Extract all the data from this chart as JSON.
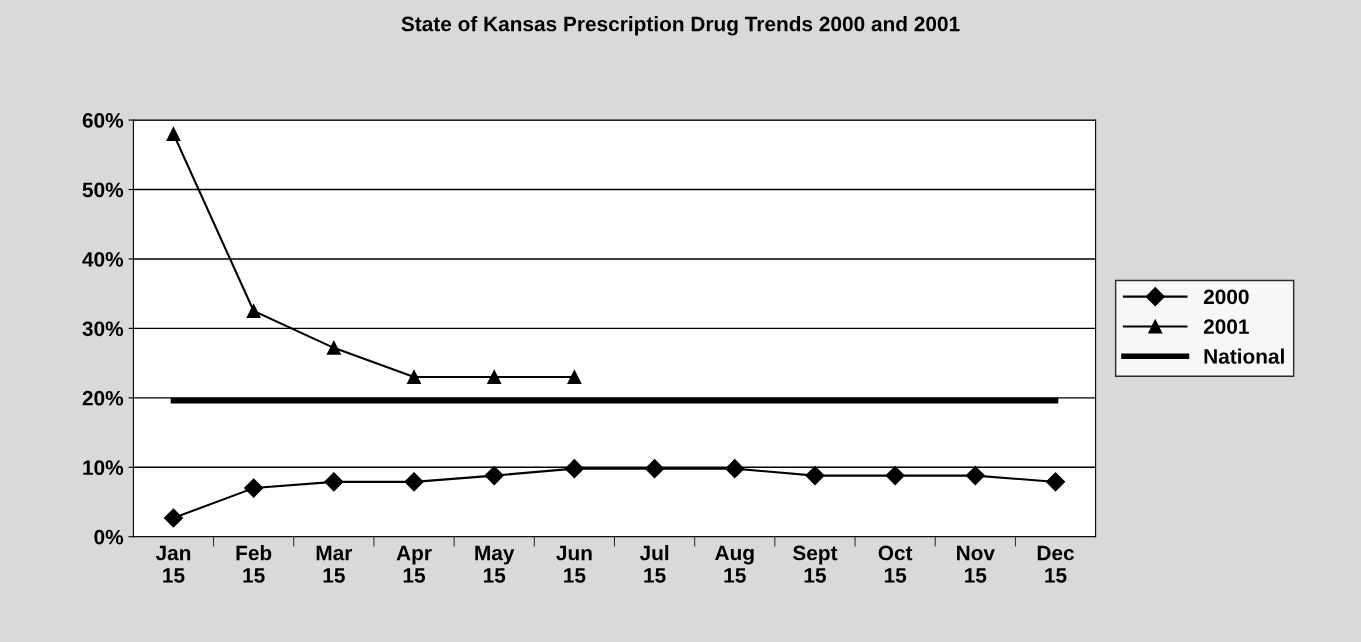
{
  "chart_data": {
    "type": "line",
    "title": "State of Kansas Prescription Drug Trends 2000 and 2001",
    "categories": [
      "Jan\n15",
      "Feb\n15",
      "Mar\n15",
      "Apr\n15",
      "May\n15",
      "Jun\n15",
      "Jul\n15",
      "Aug\n15",
      "Sept\n15",
      "Oct\n15",
      "Nov\n15",
      "Dec\n15"
    ],
    "series": [
      {
        "name": "2000",
        "color": "#000000",
        "marker": "diamond",
        "values": [
          2.7,
          7,
          7.9,
          7.9,
          8.8,
          9.8,
          9.8,
          9.8,
          8.8,
          8.8,
          8.8,
          7.9
        ]
      },
      {
        "name": "2001",
        "color": "#000000",
        "marker": "triangle",
        "values": [
          58,
          32.5,
          27.2,
          23,
          23,
          23,
          null,
          null,
          null,
          null,
          null,
          null
        ]
      },
      {
        "name": "National",
        "color": "#000000",
        "marker": "none",
        "values": [
          19.6,
          19.6,
          19.6,
          19.6,
          19.6,
          19.6,
          19.6,
          19.6,
          19.6,
          19.6,
          19.6,
          19.6
        ]
      }
    ],
    "ylim": [
      0,
      60
    ],
    "yticks": [
      {
        "value": 0,
        "label": "0%"
      },
      {
        "value": 10,
        "label": "10%"
      },
      {
        "value": 20,
        "label": "20%"
      },
      {
        "value": 30,
        "label": "30%"
      },
      {
        "value": 40,
        "label": "40%"
      },
      {
        "value": 50,
        "label": "50%"
      },
      {
        "value": 60,
        "label": "60%"
      }
    ],
    "grid": "y",
    "legend": "right",
    "line_style": "solid"
  }
}
